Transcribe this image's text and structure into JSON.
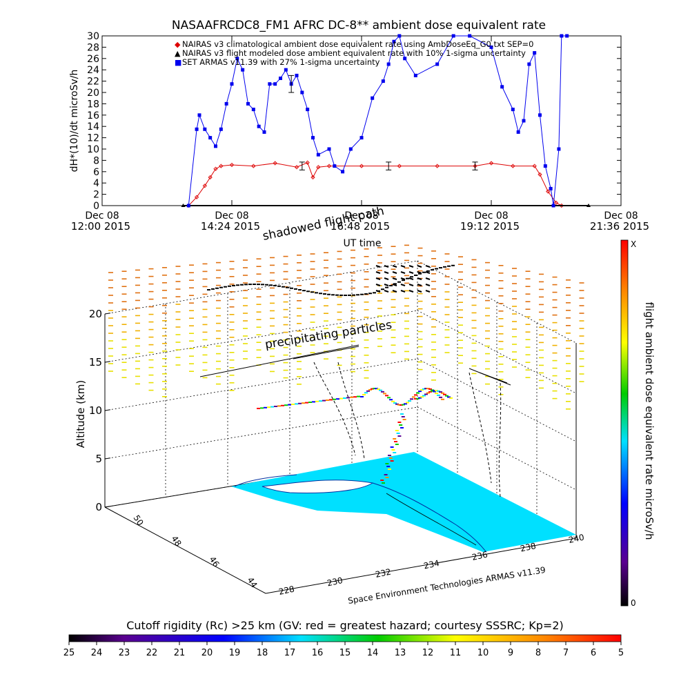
{
  "chart_data": [
    {
      "type": "line",
      "title": "NASAAFRCDC8_FM1 AFRC DC-8** ambient dose equivalent rate",
      "ylabel": "dH*(10)/dt microSv/h",
      "xlabel": "UT time",
      "ylim": [
        0,
        30
      ],
      "yticks": [
        0,
        2,
        4,
        6,
        8,
        10,
        12,
        14,
        16,
        18,
        20,
        22,
        24,
        26,
        28,
        30
      ],
      "xlim_hours": [
        12.0,
        21.6
      ],
      "xticks": [
        {
          "hour": 12.0,
          "line1": "Dec 08",
          "line2": "12:00 2015"
        },
        {
          "hour": 14.4,
          "line1": "Dec 08",
          "line2": "14:24 2015"
        },
        {
          "hour": 16.8,
          "line1": "Dec 08",
          "line2": "16:48 2015"
        },
        {
          "hour": 19.2,
          "line1": "Dec 08",
          "line2": "19:12 2015"
        },
        {
          "hour": 21.6,
          "line1": "Dec 08",
          "line2": "21:36 2015"
        }
      ],
      "legend": [
        {
          "symbol": "◆",
          "color": "#dd0000",
          "text": "NAIRAS v3 climatological ambient dose equivalent rate using AmbDoseEq_G0.txt SEP=0"
        },
        {
          "symbol": "▲",
          "color": "#000000",
          "text": "NAIRAS v3 flight modeled dose ambient equivalent rate with 10% 1-sigma uncertainty"
        },
        {
          "symbol": "■",
          "color": "#0000ee",
          "text": "SET ARMAS v11.39 with 27% 1-sigma uncertainty"
        }
      ],
      "series": [
        {
          "name": "NAIRAS v3 climatological ambient dose equivalent rate using AmbDoseEq_G0.txt SEP=0",
          "color": "#dd0000",
          "x": [
            13.6,
            13.75,
            13.9,
            14.0,
            14.1,
            14.2,
            14.4,
            14.8,
            15.2,
            15.6,
            15.8,
            15.9,
            16.0,
            16.2,
            16.8,
            17.5,
            18.2,
            18.9,
            19.2,
            19.6,
            20.0,
            20.1,
            20.25,
            20.4,
            20.5
          ],
          "y": [
            0,
            1.5,
            3.5,
            5,
            6.5,
            7,
            7.2,
            7.0,
            7.5,
            6.8,
            7.6,
            5.0,
            6.8,
            7.0,
            7.0,
            7.0,
            7.0,
            7.0,
            7.5,
            7.0,
            7.0,
            5.5,
            2.5,
            0.5,
            0
          ]
        },
        {
          "name": "NAIRAS v3 flight modeled dose ambient equivalent rate with 10% 1-sigma uncertainty",
          "color": "#000000",
          "x": [
            13.5,
            21.0
          ],
          "y": [
            0,
            0
          ]
        },
        {
          "name": "SET ARMAS v11.39 with 27% 1-sigma uncertainty",
          "color": "#0000ee",
          "x": [
            13.6,
            13.75,
            13.8,
            13.9,
            14.0,
            14.1,
            14.2,
            14.3,
            14.4,
            14.5,
            14.6,
            14.7,
            14.8,
            14.9,
            15.0,
            15.1,
            15.2,
            15.3,
            15.4,
            15.5,
            15.6,
            15.7,
            15.8,
            15.9,
            16.0,
            16.2,
            16.3,
            16.45,
            16.6,
            16.8,
            17.0,
            17.2,
            17.3,
            17.4,
            17.5,
            17.6,
            17.8,
            18.2,
            18.5,
            18.8,
            19.2,
            19.4,
            19.6,
            19.7,
            19.8,
            19.9,
            20.0,
            20.1,
            20.2,
            20.3,
            20.35,
            20.45,
            20.5,
            20.6
          ],
          "y": [
            0,
            13.5,
            16,
            13.5,
            12,
            10.5,
            13.5,
            18,
            21.5,
            26,
            24,
            18,
            17,
            14,
            13,
            21.5,
            21.5,
            22.5,
            24,
            21.5,
            23,
            20,
            17,
            12,
            9,
            10,
            7,
            6,
            10,
            12,
            19,
            22,
            25,
            29,
            30,
            26,
            23,
            25,
            30,
            30,
            28,
            21,
            17,
            13,
            15,
            25,
            27,
            16,
            7,
            3,
            0,
            10,
            30,
            30
          ]
        }
      ],
      "error_bars": [
        {
          "x": 15.7,
          "y": 7.0,
          "err": 0.7
        },
        {
          "x": 17.3,
          "y": 7.0,
          "err": 0.7
        },
        {
          "x": 18.9,
          "y": 7.0,
          "err": 0.7
        },
        {
          "x": 15.5,
          "y": 21.5,
          "err": 1.5
        }
      ]
    },
    {
      "type": "scatter",
      "title": "shadowed flight path",
      "annotation": "precipitating particles",
      "zlabel": "Altitude (km)",
      "zticks": [
        0,
        5,
        10,
        15,
        20
      ],
      "lon_ticks": [
        "228",
        "230",
        "232",
        "234",
        "236",
        "238",
        "240"
      ],
      "lat_ticks": [
        "44",
        "46",
        "48",
        "50"
      ],
      "footer": "Space Environment Technologies ARMAS v11.39",
      "colorbar_label": "flight ambient dose equivalent rate microSv/h",
      "colorbar_top": "X",
      "colorbar_bottom": "0"
    },
    {
      "type": "heatmap",
      "title": "Cutoff rigidity (Rc) >25 km (GV: red = greatest hazard; courtesy SSSRC; Kp=2)",
      "ticks": [
        "25",
        "24",
        "23",
        "22",
        "21",
        "20",
        "19",
        "18",
        "17",
        "16",
        "15",
        "14",
        "13",
        "12",
        "11",
        "10",
        "9",
        "8",
        "7",
        "6",
        "5"
      ]
    }
  ]
}
